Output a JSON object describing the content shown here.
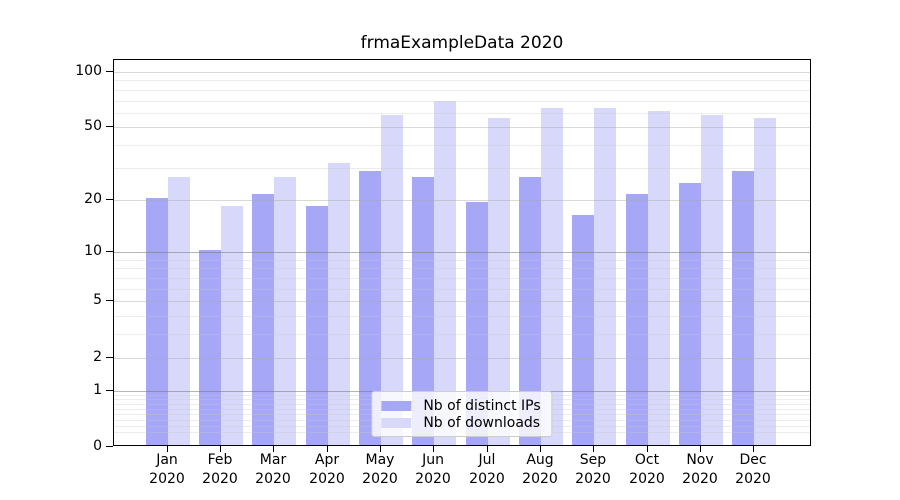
{
  "chart_data": {
    "type": "bar",
    "title": "frmaExampleData 2020",
    "categories": [
      "Jan",
      "Feb",
      "Mar",
      "Apr",
      "May",
      "Jun",
      "Jul",
      "Aug",
      "Sep",
      "Oct",
      "Nov",
      "Dec"
    ],
    "x_tick_year": "2020",
    "series": [
      {
        "name": "Nb of distinct IPs",
        "color": "#a7a7f7",
        "values": [
          20,
          10,
          21,
          18,
          28,
          26,
          19,
          26,
          16,
          21,
          24,
          28
        ]
      },
      {
        "name": "Nb of downloads",
        "color": "#d8d8fa",
        "values": [
          26,
          18,
          26,
          31,
          57,
          68,
          55,
          62,
          62,
          60,
          57,
          55
        ]
      }
    ],
    "yscale": "log1p",
    "yticks": [
      0,
      1,
      2,
      5,
      10,
      20,
      50,
      100
    ],
    "ylim": [
      0,
      116
    ],
    "grid": {
      "on": true,
      "minor_ticks": [
        0.2,
        0.3,
        0.4,
        0.5,
        0.6,
        0.7,
        0.8,
        0.9,
        3,
        4,
        6,
        7,
        8,
        9,
        30,
        40,
        60,
        70,
        80,
        90
      ],
      "emphasized": [
        1,
        10
      ],
      "color_major": "rgba(120,120,120,0.55)",
      "color_mid": "rgba(170,170,170,0.45)",
      "color_minor": "rgba(200,200,200,0.35)"
    },
    "legend": {
      "position": "lower center",
      "items": [
        "Nb of distinct IPs",
        "Nb of downloads"
      ]
    },
    "colors": {
      "background": "#ffffff",
      "spine": "#000000",
      "legend_border": "#cccccc",
      "bar_distinct_ips": "#a7a7f7",
      "bar_downloads": "#d8d8fa"
    }
  }
}
